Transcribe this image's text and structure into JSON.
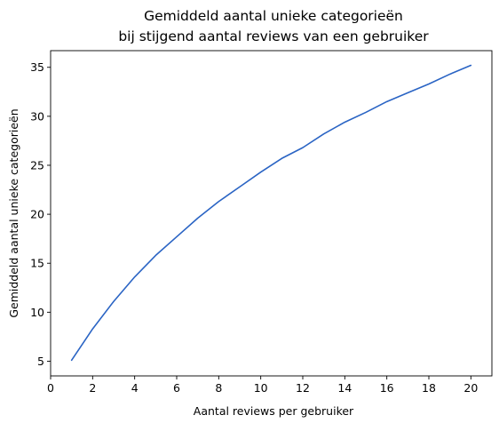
{
  "chart_data": {
    "type": "line",
    "title_line1": "Gemiddeld aantal unieke categorieën",
    "title_line2": "bij stijgend aantal reviews van een gebruiker",
    "xlabel": "Aantal reviews per gebruiker",
    "ylabel": "Gemiddeld aantal unieke categorieën",
    "xlim": [
      0,
      21
    ],
    "ylim": [
      3.5,
      36.7
    ],
    "xticks": [
      0,
      2,
      4,
      6,
      8,
      10,
      12,
      14,
      16,
      18,
      20
    ],
    "yticks": [
      5,
      10,
      15,
      20,
      25,
      30,
      35
    ],
    "grid": false,
    "line_color": "#2a64c4",
    "series": [
      {
        "x": [
          1,
          2,
          3,
          4,
          5,
          6,
          7,
          8,
          9,
          10,
          11,
          12,
          13,
          14,
          15,
          16,
          17,
          18,
          19,
          20
        ],
        "values": [
          5.1,
          8.3,
          11.1,
          13.6,
          15.8,
          17.7,
          19.6,
          21.3,
          22.8,
          24.3,
          25.7,
          26.8,
          28.2,
          29.4,
          30.4,
          31.5,
          32.4,
          33.3,
          34.3,
          35.2
        ]
      }
    ]
  }
}
